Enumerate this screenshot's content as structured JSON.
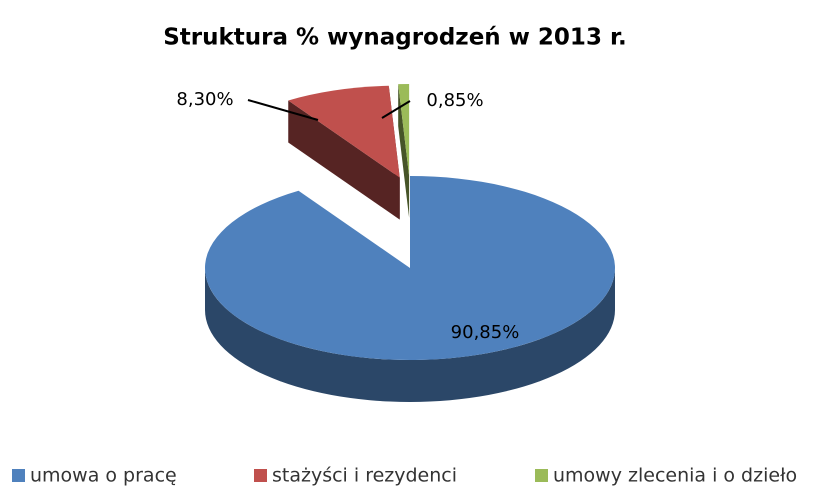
{
  "chart_data": {
    "type": "pie",
    "title": "Struktura % wynagrodzeń w 2013 r.",
    "categories": [
      "umowa o pracę",
      "stażyści i rezydenci",
      "umowy zlecenia i o dzieło"
    ],
    "values": [
      90.85,
      8.3,
      0.85
    ],
    "value_labels": [
      "90,85%",
      "8,30%",
      "0,85%"
    ],
    "colors": [
      "#4f81bd",
      "#c0504d",
      "#9bbb59"
    ],
    "legend": "bottom"
  }
}
